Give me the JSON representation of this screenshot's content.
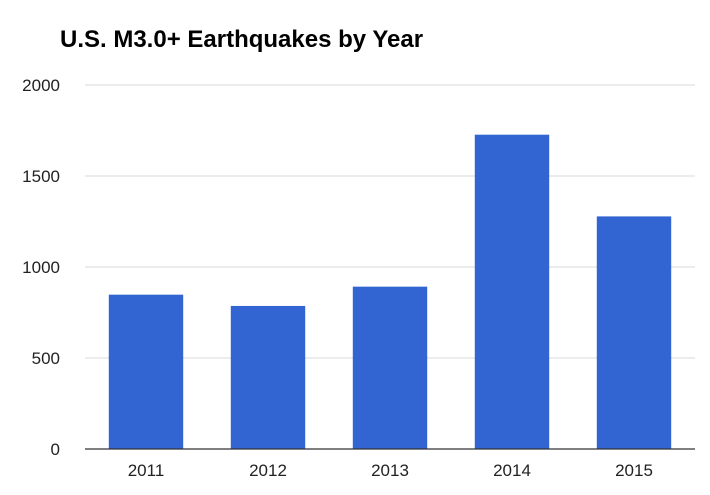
{
  "chart_data": {
    "type": "bar",
    "title": "U.S. M3.0+ Earthquakes by Year",
    "xlabel": "",
    "ylabel": "",
    "categories": [
      "2011",
      "2012",
      "2013",
      "2014",
      "2015"
    ],
    "series": [
      {
        "values": [
          848,
          786,
          892,
          1727,
          1278
        ]
      }
    ],
    "ylim": [
      0,
      2000
    ],
    "yticks": [
      0,
      500,
      1000,
      1500,
      2000
    ],
    "grid": true,
    "legend": "none",
    "colors": {
      "bar": "#3264d2",
      "grid": "#d9d9d9",
      "axis": "#333333"
    }
  }
}
